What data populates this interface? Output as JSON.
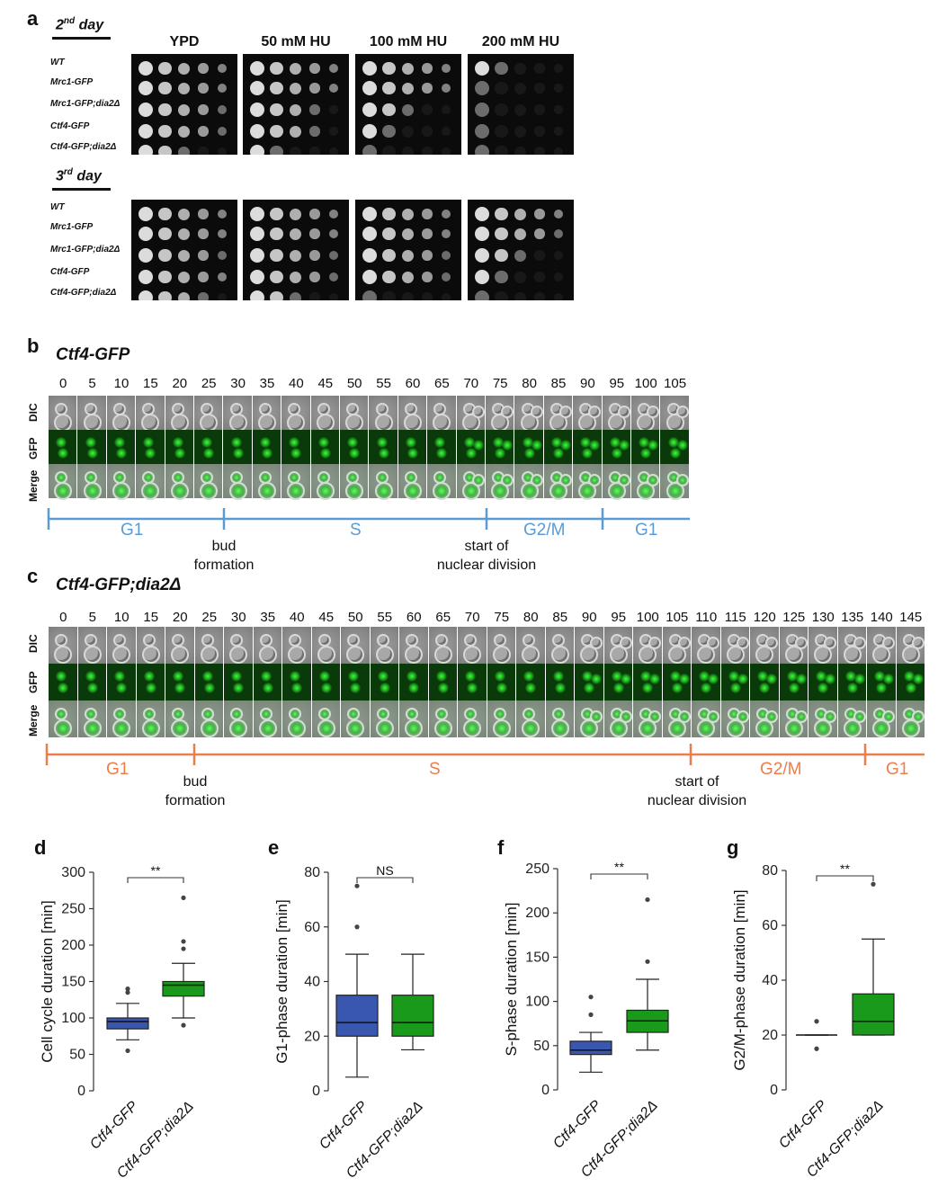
{
  "panel_a": {
    "letter": "a",
    "days": [
      {
        "label_main": "2",
        "label_sup": "nd",
        "label_rest": " day"
      },
      {
        "label_main": "3",
        "label_sup": "rd",
        "label_rest": " day"
      }
    ],
    "conditions": [
      "YPD",
      "50 mM HU",
      "100 mM HU",
      "200 mM HU"
    ],
    "strains": [
      "WT",
      "Mrc1-GFP",
      "Mrc1-GFP;dia2Δ",
      "Ctf4-GFP",
      "Ctf4-GFP;dia2Δ"
    ]
  },
  "panel_b": {
    "letter": "b",
    "strain": "Ctf4-GFP",
    "frames": [
      "0",
      "5",
      "10",
      "15",
      "20",
      "25",
      "30",
      "35",
      "40",
      "45",
      "50",
      "55",
      "60",
      "65",
      "70",
      "75",
      "80",
      "85",
      "90",
      "95",
      "100",
      "105"
    ],
    "row_labels": [
      "DIC",
      "GFP",
      "Merge"
    ],
    "phases": [
      "G1",
      "S",
      "G2/M",
      "G1"
    ],
    "annotations": [
      [
        "bud",
        "formation"
      ],
      [
        "start of",
        "nuclear division"
      ]
    ],
    "color": "#5b9bd5"
  },
  "panel_c": {
    "letter": "c",
    "strain": "Ctf4-GFP;dia2Δ",
    "frames": [
      "0",
      "5",
      "10",
      "15",
      "20",
      "25",
      "30",
      "35",
      "40",
      "45",
      "50",
      "55",
      "60",
      "65",
      "70",
      "75",
      "80",
      "85",
      "90",
      "95",
      "100",
      "105",
      "110",
      "115",
      "120",
      "125",
      "130",
      "135",
      "140",
      "145"
    ],
    "row_labels": [
      "DIC",
      "GFP",
      "Merge"
    ],
    "phases": [
      "G1",
      "S",
      "G2/M",
      "G1"
    ],
    "annotations": [
      [
        "bud",
        "formation"
      ],
      [
        "start of",
        "nuclear division"
      ]
    ],
    "color": "#ed7d4b"
  },
  "chart_data": [
    {
      "panel": "d",
      "type": "box",
      "ylabel": "Cell cycle duration [min]",
      "categories": [
        "Ctf4-GFP",
        "Ctf4-GFP;dia2Δ"
      ],
      "ylim": [
        0,
        300
      ],
      "yticks": [
        0,
        50,
        100,
        150,
        200,
        250,
        300
      ],
      "significance": "**",
      "boxes": [
        {
          "color": "#3a57b0",
          "whisker_low": 70,
          "q1": 85,
          "median": 95,
          "q3": 100,
          "whisker_high": 120,
          "outliers": [
            55,
            135,
            140
          ]
        },
        {
          "color": "#1a9a1a",
          "whisker_low": 100,
          "q1": 130,
          "median": 145,
          "q3": 150,
          "whisker_high": 175,
          "outliers": [
            90,
            195,
            205,
            265
          ]
        }
      ]
    },
    {
      "panel": "e",
      "type": "box",
      "ylabel": "G1-phase duration [min]",
      "categories": [
        "Ctf4-GFP",
        "Ctf4-GFP;dia2Δ"
      ],
      "ylim": [
        0,
        80
      ],
      "yticks": [
        0,
        20,
        40,
        60,
        80
      ],
      "significance": "NS",
      "boxes": [
        {
          "color": "#3a57b0",
          "whisker_low": 5,
          "q1": 20,
          "median": 25,
          "q3": 35,
          "whisker_high": 50,
          "outliers": [
            60,
            75
          ]
        },
        {
          "color": "#1a9a1a",
          "whisker_low": 15,
          "q1": 20,
          "median": 25,
          "q3": 35,
          "whisker_high": 50,
          "outliers": []
        }
      ]
    },
    {
      "panel": "f",
      "type": "box",
      "ylabel": "S-phase duration [min]",
      "categories": [
        "Ctf4-GFP",
        "Ctf4-GFP;dia2Δ"
      ],
      "ylim": [
        0,
        250
      ],
      "yticks": [
        0,
        50,
        100,
        150,
        200,
        250
      ],
      "significance": "**",
      "boxes": [
        {
          "color": "#3a57b0",
          "whisker_low": 20,
          "q1": 40,
          "median": 45,
          "q3": 55,
          "whisker_high": 65,
          "outliers": [
            85,
            105
          ]
        },
        {
          "color": "#1a9a1a",
          "whisker_low": 45,
          "q1": 65,
          "median": 78,
          "q3": 90,
          "whisker_high": 125,
          "outliers": [
            145,
            215
          ]
        }
      ]
    },
    {
      "panel": "g",
      "type": "box",
      "ylabel": "G2/M-phase duration [min]",
      "categories": [
        "Ctf4-GFP",
        "Ctf4-GFP;dia2Δ"
      ],
      "ylim": [
        0,
        80
      ],
      "yticks": [
        0,
        20,
        40,
        60,
        80
      ],
      "significance": "**",
      "boxes": [
        {
          "color": "#3a57b0",
          "whisker_low": 20,
          "q1": 20,
          "median": 20,
          "q3": 20,
          "whisker_high": 20,
          "outliers": [
            15,
            25
          ]
        },
        {
          "color": "#1a9a1a",
          "whisker_low": 20,
          "q1": 20,
          "median": 25,
          "q3": 35,
          "whisker_high": 55,
          "outliers": [
            75
          ]
        }
      ]
    }
  ]
}
